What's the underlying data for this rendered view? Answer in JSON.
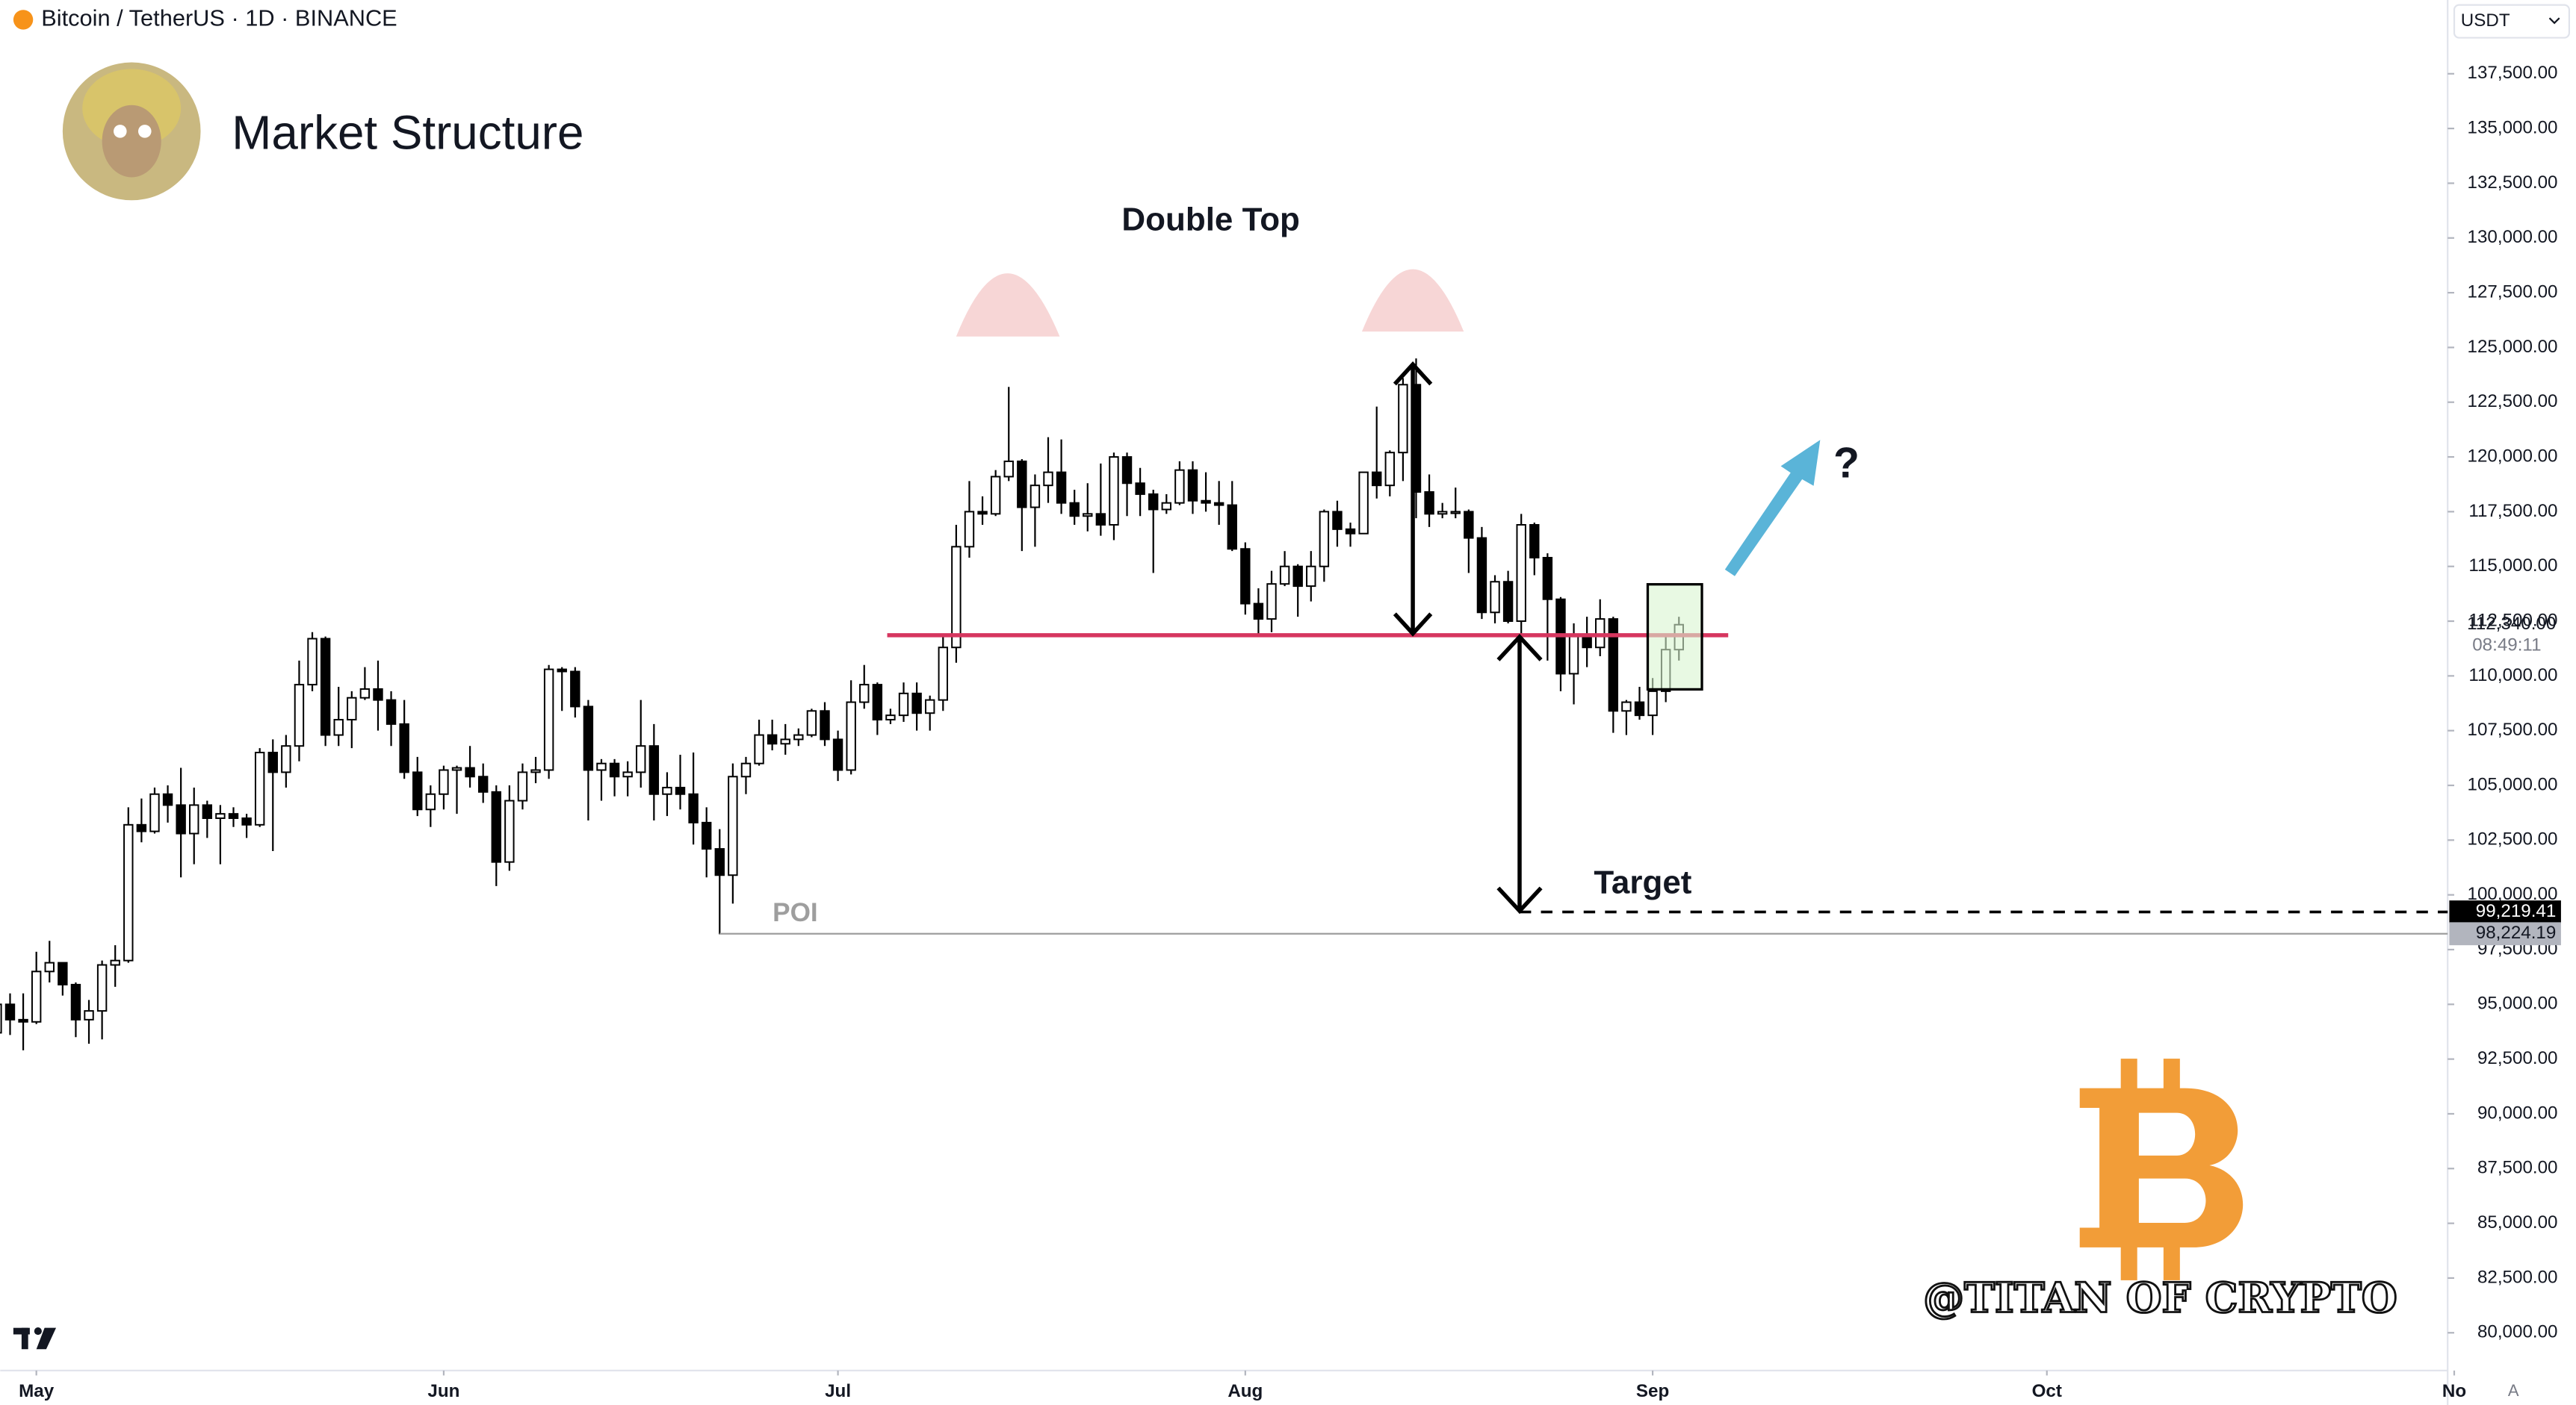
{
  "header": {
    "symbol": "Bitcoin / TetherUS · 1D · BINANCE",
    "currency": "USDT",
    "auto_button": "A"
  },
  "chart_data": {
    "type": "candlestick",
    "title": "Market Structure",
    "open": [
      93700,
      95000,
      94300,
      94200,
      96500,
      96900,
      95900,
      94300,
      94700,
      96800,
      97000,
      103200,
      102900,
      104600,
      104100,
      102800,
      104100,
      103500,
      103700,
      103500,
      103200,
      106500,
      105600,
      106800,
      109600,
      111700,
      107300,
      108000,
      109000,
      109400,
      108900,
      107800,
      105600,
      103900,
      104600,
      105700,
      105800,
      105400,
      104700,
      101500,
      104300,
      105600,
      105700,
      110300,
      110200,
      108600,
      105700,
      106000,
      105400,
      105600,
      106800,
      104600,
      104900,
      104600,
      103300,
      102100,
      100900,
      105400,
      106000,
      107300,
      106900,
      107100,
      107300,
      108400,
      107100,
      105700,
      108800,
      109600,
      108000,
      108200,
      109200,
      108300,
      108900,
      111300,
      115900,
      117500,
      117400,
      119100,
      119800,
      117700,
      118700,
      119300,
      117900,
      117300,
      117400,
      116900,
      120000,
      118800,
      118300,
      117600,
      117900,
      119400,
      118000,
      117900,
      117800,
      115800,
      113300,
      112600,
      114200,
      115000,
      114100,
      115000,
      117500,
      116700,
      116500,
      119300,
      118700,
      120200,
      123300,
      118400,
      117400,
      117500,
      117500,
      116300,
      112900,
      114300,
      112500,
      116900,
      115400,
      113500,
      110100,
      111800,
      111300,
      112600,
      108400,
      108800,
      108200,
      109300,
      111200
    ],
    "high": [
      95600,
      95500,
      95500,
      97400,
      97900,
      96900,
      96000,
      95200,
      97000,
      97700,
      104000,
      104400,
      104900,
      105000,
      105800,
      104900,
      104300,
      104100,
      104000,
      103700,
      106700,
      107100,
      107300,
      110700,
      112000,
      111800,
      109500,
      109300,
      110400,
      110700,
      109300,
      108900,
      106300,
      105000,
      105900,
      105900,
      106800,
      106000,
      105000,
      105000,
      106000,
      106300,
      110500,
      110400,
      110400,
      108900,
      106200,
      106200,
      106100,
      108900,
      107800,
      105600,
      106400,
      106500,
      104000,
      103000,
      106000,
      106300,
      108000,
      108000,
      107800,
      107600,
      108500,
      108800,
      107500,
      109800,
      110500,
      109700,
      108500,
      109700,
      109700,
      109100,
      111900,
      116900,
      118900,
      118200,
      119400,
      123200,
      119900,
      119200,
      120900,
      120800,
      118500,
      118800,
      119700,
      120200,
      120200,
      119500,
      118500,
      118300,
      119800,
      119800,
      119300,
      118900,
      118900,
      116100,
      114000,
      114800,
      115700,
      115100,
      115700,
      117600,
      118000,
      117000,
      119300,
      122300,
      120300,
      123600,
      124500,
      119200,
      117900,
      118600,
      117600,
      116800,
      114600,
      114800,
      117400,
      117000,
      115600,
      113600,
      112400,
      112700,
      113500,
      112700,
      108900,
      109500,
      109900,
      111800,
      112700
    ],
    "low": [
      92900,
      93600,
      92900,
      94100,
      96000,
      95400,
      93500,
      93200,
      93400,
      95800,
      96900,
      102400,
      102800,
      103300,
      100800,
      101400,
      102600,
      101400,
      103100,
      102600,
      103100,
      102000,
      104900,
      106100,
      109300,
      106800,
      106800,
      106700,
      108900,
      107500,
      106800,
      105300,
      103600,
      103100,
      103900,
      103700,
      104900,
      104200,
      100400,
      101100,
      103900,
      105100,
      105300,
      108400,
      108100,
      103400,
      104300,
      104500,
      104500,
      104900,
      103400,
      103600,
      103900,
      102300,
      100800,
      98200,
      99600,
      104600,
      105900,
      106600,
      106400,
      106800,
      107200,
      106800,
      105200,
      105500,
      108500,
      107300,
      107800,
      107900,
      107500,
      107500,
      108400,
      110600,
      115400,
      116900,
      117300,
      118900,
      115700,
      115900,
      117900,
      117400,
      116900,
      116600,
      116400,
      116200,
      117300,
      117300,
      114700,
      117400,
      117800,
      117400,
      117500,
      116900,
      115700,
      112800,
      111900,
      112000,
      114100,
      112700,
      113400,
      114300,
      115900,
      115900,
      116500,
      118100,
      118200,
      118900,
      117200,
      116800,
      117200,
      117200,
      114700,
      112600,
      112400,
      112400,
      111700,
      114600,
      110700,
      109300,
      108700,
      110400,
      110900,
      107400,
      107300,
      108000,
      107300,
      108800,
      110700
    ],
    "close": [
      95000,
      94300,
      94200,
      96500,
      96900,
      95900,
      94300,
      94700,
      96800,
      97000,
      103200,
      102900,
      104600,
      104100,
      102800,
      104100,
      103500,
      103700,
      103500,
      103200,
      106500,
      105600,
      106800,
      109600,
      111700,
      107300,
      108000,
      109000,
      109400,
      108900,
      107800,
      105600,
      103900,
      104600,
      105700,
      105800,
      105400,
      104700,
      101500,
      104300,
      105600,
      105700,
      110300,
      110200,
      108600,
      105700,
      106000,
      105400,
      105600,
      106800,
      104600,
      104900,
      104600,
      103300,
      102100,
      100900,
      105400,
      106000,
      107300,
      106900,
      107100,
      107300,
      108400,
      107100,
      105700,
      108800,
      109600,
      108000,
      108200,
      109200,
      108300,
      108900,
      111300,
      115900,
      117500,
      117400,
      119100,
      119800,
      117700,
      118700,
      119300,
      117900,
      117300,
      117400,
      116900,
      120000,
      118800,
      118300,
      117600,
      117900,
      119400,
      118000,
      117900,
      117800,
      115800,
      113300,
      112600,
      114200,
      115000,
      114100,
      115000,
      117500,
      116700,
      116500,
      119300,
      118700,
      120200,
      123300,
      118400,
      117400,
      117500,
      117500,
      116300,
      112900,
      114300,
      112500,
      116900,
      115400,
      113500,
      110100,
      111800,
      111300,
      112600,
      108400,
      108800,
      108200,
      109300,
      111200,
      112340
    ],
    "up_color": "#ffffff",
    "down_color": "#000000",
    "xlim": [
      0.25,
      186.5
    ],
    "xticks": [
      {
        "value": 3,
        "label": "May"
      },
      {
        "value": 34,
        "label": "Jun"
      },
      {
        "value": 64,
        "label": "Jul"
      },
      {
        "value": 95,
        "label": "Aug"
      },
      {
        "value": 126,
        "label": "Sep"
      },
      {
        "value": 156,
        "label": "Oct"
      },
      {
        "value": 187,
        "label": "No"
      }
    ],
    "ylim": [
      78276,
      140868
    ],
    "yticks": [
      {
        "value": 80000,
        "label": "80,000.00"
      },
      {
        "value": 82500,
        "label": "82,500.00"
      },
      {
        "value": 85000,
        "label": "85,000.00"
      },
      {
        "value": 87500,
        "label": "87,500.00"
      },
      {
        "value": 90000,
        "label": "90,000.00"
      },
      {
        "value": 92500,
        "label": "92,500.00"
      },
      {
        "value": 95000,
        "label": "95,000.00"
      },
      {
        "value": 97500,
        "label": "97,500.00"
      },
      {
        "value": 100000,
        "label": "100,000.00"
      },
      {
        "value": 102500,
        "label": "102,500.00"
      },
      {
        "value": 105000,
        "label": "105,000.00"
      },
      {
        "value": 107500,
        "label": "107,500.00"
      },
      {
        "value": 110000,
        "label": "110,000.00"
      },
      {
        "value": 112500,
        "label": "112,500.00"
      },
      {
        "value": 115000,
        "label": "115,000.00"
      },
      {
        "value": 117500,
        "label": "117,500.00"
      },
      {
        "value": 120000,
        "label": "120,000.00"
      },
      {
        "value": 122500,
        "label": "122,500.00"
      },
      {
        "value": 125000,
        "label": "125,000.00"
      },
      {
        "value": 127500,
        "label": "127,500.00"
      },
      {
        "value": 130000,
        "label": "130,000.00"
      },
      {
        "value": 132500,
        "label": "132,500.00"
      },
      {
        "value": 135000,
        "label": "135,000.00"
      },
      {
        "value": 137500,
        "label": "137,500.00"
      }
    ],
    "price_levels": [
      {
        "value": 112340,
        "label": "112,340.00",
        "countdown": "08:49:11"
      },
      {
        "value": 99219.41,
        "label": "99,219.41",
        "line": "dashed"
      },
      {
        "value": 98224.19,
        "label": "98,224.19",
        "line": "solid"
      }
    ],
    "annotations": {
      "pattern": "Double Top",
      "target": "Target",
      "poi": "POI",
      "question": "?"
    },
    "watermark": "@TITAN OF CRYPTO"
  }
}
